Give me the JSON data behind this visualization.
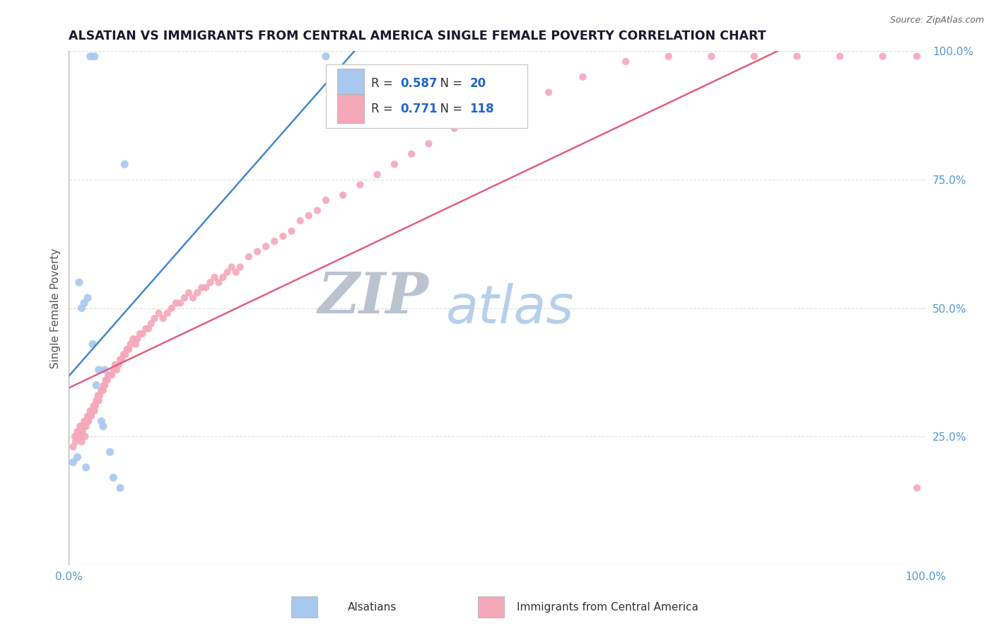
{
  "title": "ALSATIAN VS IMMIGRANTS FROM CENTRAL AMERICA SINGLE FEMALE POVERTY CORRELATION CHART",
  "source_text": "Source: ZipAtlas.com",
  "ylabel": "Single Female Poverty",
  "xlim": [
    0.0,
    1.0
  ],
  "ylim": [
    0.0,
    1.0
  ],
  "y_tick_labels": [
    "25.0%",
    "50.0%",
    "75.0%",
    "100.0%"
  ],
  "y_tick_positions": [
    0.25,
    0.5,
    0.75,
    1.0
  ],
  "background_color": "#ffffff",
  "grid_color": "#dddddd",
  "blue_R": 0.587,
  "blue_N": 20,
  "pink_R": 0.771,
  "pink_N": 118,
  "blue_color": "#a8c8f0",
  "pink_color": "#f4a8b8",
  "blue_line_color": "#4488cc",
  "pink_line_color": "#e06080",
  "blue_x": [
    0.005,
    0.01,
    0.012,
    0.015,
    0.018,
    0.02,
    0.022,
    0.025,
    0.028,
    0.03,
    0.032,
    0.035,
    0.038,
    0.04,
    0.042,
    0.048,
    0.052,
    0.06,
    0.065,
    0.3
  ],
  "blue_y": [
    0.2,
    0.21,
    0.55,
    0.5,
    0.51,
    0.19,
    0.52,
    0.99,
    0.43,
    0.99,
    0.35,
    0.38,
    0.28,
    0.27,
    0.38,
    0.22,
    0.17,
    0.15,
    0.78,
    0.99
  ],
  "pink_x": [
    0.005,
    0.007,
    0.008,
    0.01,
    0.01,
    0.012,
    0.012,
    0.013,
    0.014,
    0.015,
    0.015,
    0.015,
    0.016,
    0.017,
    0.018,
    0.018,
    0.019,
    0.02,
    0.02,
    0.021,
    0.022,
    0.022,
    0.023,
    0.024,
    0.025,
    0.025,
    0.026,
    0.027,
    0.028,
    0.029,
    0.03,
    0.03,
    0.031,
    0.032,
    0.033,
    0.034,
    0.035,
    0.036,
    0.038,
    0.04,
    0.041,
    0.042,
    0.043,
    0.044,
    0.045,
    0.046,
    0.048,
    0.05,
    0.052,
    0.054,
    0.056,
    0.058,
    0.06,
    0.062,
    0.064,
    0.066,
    0.068,
    0.07,
    0.072,
    0.075,
    0.078,
    0.08,
    0.083,
    0.086,
    0.09,
    0.093,
    0.096,
    0.1,
    0.105,
    0.11,
    0.115,
    0.12,
    0.125,
    0.13,
    0.135,
    0.14,
    0.145,
    0.15,
    0.155,
    0.16,
    0.165,
    0.17,
    0.175,
    0.18,
    0.185,
    0.19,
    0.195,
    0.2,
    0.21,
    0.22,
    0.23,
    0.24,
    0.25,
    0.26,
    0.27,
    0.28,
    0.29,
    0.3,
    0.32,
    0.34,
    0.36,
    0.38,
    0.4,
    0.42,
    0.45,
    0.48,
    0.52,
    0.56,
    0.6,
    0.65,
    0.7,
    0.75,
    0.8,
    0.85,
    0.9,
    0.95,
    0.99,
    0.99
  ],
  "pink_y": [
    0.23,
    0.25,
    0.24,
    0.26,
    0.25,
    0.25,
    0.26,
    0.27,
    0.25,
    0.26,
    0.27,
    0.24,
    0.26,
    0.27,
    0.27,
    0.28,
    0.25,
    0.27,
    0.28,
    0.28,
    0.28,
    0.29,
    0.28,
    0.29,
    0.29,
    0.3,
    0.29,
    0.3,
    0.3,
    0.31,
    0.3,
    0.31,
    0.31,
    0.32,
    0.32,
    0.33,
    0.32,
    0.33,
    0.34,
    0.34,
    0.35,
    0.35,
    0.36,
    0.36,
    0.36,
    0.37,
    0.37,
    0.37,
    0.38,
    0.39,
    0.38,
    0.39,
    0.4,
    0.4,
    0.41,
    0.41,
    0.42,
    0.42,
    0.43,
    0.44,
    0.43,
    0.44,
    0.45,
    0.45,
    0.46,
    0.46,
    0.47,
    0.48,
    0.49,
    0.48,
    0.49,
    0.5,
    0.51,
    0.51,
    0.52,
    0.53,
    0.52,
    0.53,
    0.54,
    0.54,
    0.55,
    0.56,
    0.55,
    0.56,
    0.57,
    0.58,
    0.57,
    0.58,
    0.6,
    0.61,
    0.62,
    0.63,
    0.64,
    0.65,
    0.67,
    0.68,
    0.69,
    0.71,
    0.72,
    0.74,
    0.76,
    0.78,
    0.8,
    0.82,
    0.85,
    0.87,
    0.9,
    0.92,
    0.95,
    0.98,
    0.99,
    0.99,
    0.99,
    0.99,
    0.99,
    0.99,
    0.99,
    0.15
  ],
  "title_fontsize": 12.5,
  "label_fontsize": 11,
  "tick_fontsize": 11,
  "source_fontsize": 9
}
